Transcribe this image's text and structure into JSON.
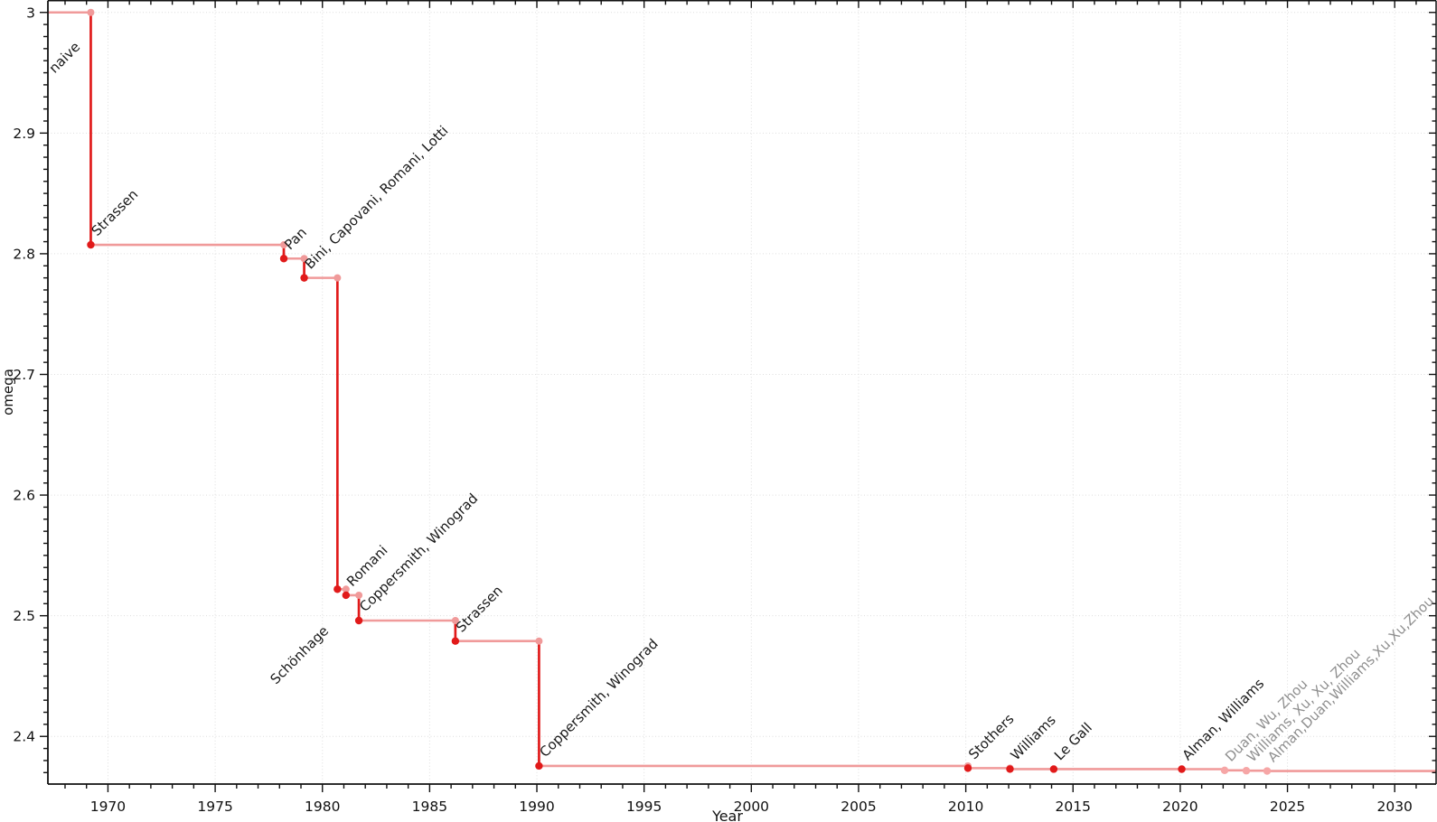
{
  "chart_data": {
    "type": "line",
    "subtype": "step-post-record-timeline",
    "title": "",
    "xlabel": "Year",
    "ylabel": "omega",
    "xlim": [
      1967.2,
      2031.93
    ],
    "ylim": [
      2.3605,
      3.0097
    ],
    "x_major_ticks": [
      1970,
      1975,
      1980,
      1985,
      1990,
      1995,
      2000,
      2005,
      2010,
      2015,
      2020,
      2025,
      2030
    ],
    "x_minor_step": 1,
    "y_major_ticks": [
      2.4,
      2.5,
      2.6,
      2.7,
      2.8,
      2.9,
      3.0
    ],
    "y_major_tick_labels": [
      "2.4",
      "2.5",
      "2.6",
      "2.7",
      "2.8",
      "2.9",
      "3"
    ],
    "y_minor_step": 0.01,
    "grid": true,
    "legend_position": "none",
    "colors": {
      "record_drop": "#e11a1a",
      "plateau": "#f09a9a",
      "dim_point": "#f6a6a6",
      "label": "#1a1a1a",
      "dim_label": "#8f8f8f",
      "grid": "#dedede",
      "axis": "#111111"
    },
    "baseline": {
      "label": "naive",
      "omega": 3.0,
      "label_dx": -40,
      "label_dy": 68
    },
    "points": [
      {
        "label": "Strassen",
        "year": 1969,
        "x": 1969.2,
        "omega": 2.8074
      },
      {
        "label": "Pan",
        "year": 1978,
        "x": 1978.2,
        "omega": 2.796
      },
      {
        "label": "Bini, Capovani, Romani, Lotti",
        "year": 1979,
        "x": 1979.15,
        "omega": 2.78
      },
      {
        "label": "Schönhage",
        "year": 1981,
        "x": 1980.7,
        "omega": 2.522,
        "label_dx": -68,
        "label_dy": 106
      },
      {
        "label": "Romani",
        "year": 1982,
        "x": 1981.1,
        "omega": 2.517
      },
      {
        "label": "Coppersmith, Winograd",
        "year": 1982,
        "x": 1981.7,
        "omega": 2.496
      },
      {
        "label": "Strassen",
        "year": 1986,
        "x": 1986.2,
        "omega": 2.479
      },
      {
        "label": "Coppersmith, Winograd",
        "year": 1990,
        "x": 1990.1,
        "omega": 2.3755
      },
      {
        "label": "Stothers",
        "year": 2010,
        "x": 2010.1,
        "omega": 2.3737
      },
      {
        "label": "Williams",
        "year": 2012,
        "x": 2012.06,
        "omega": 2.3729
      },
      {
        "label": "Le Gall",
        "year": 2014,
        "x": 2014.1,
        "omega": 2.3728639
      },
      {
        "label": "Alman, Williams",
        "year": 2020,
        "x": 2020.07,
        "omega": 2.3728596
      },
      {
        "label": "Duan, Wu, Zhou",
        "year": 2022,
        "x": 2022.07,
        "omega": 2.371866,
        "dim": true
      },
      {
        "label": "Williams, Xu, Xu, Zhou",
        "year": 2023,
        "x": 2023.08,
        "omega": 2.371552,
        "dim": true
      },
      {
        "label": "Alman,Duan,Williams,Xu,Xu,Zhou",
        "year": 2024,
        "x": 2024.05,
        "omega": 2.371339,
        "dim": true
      }
    ]
  }
}
